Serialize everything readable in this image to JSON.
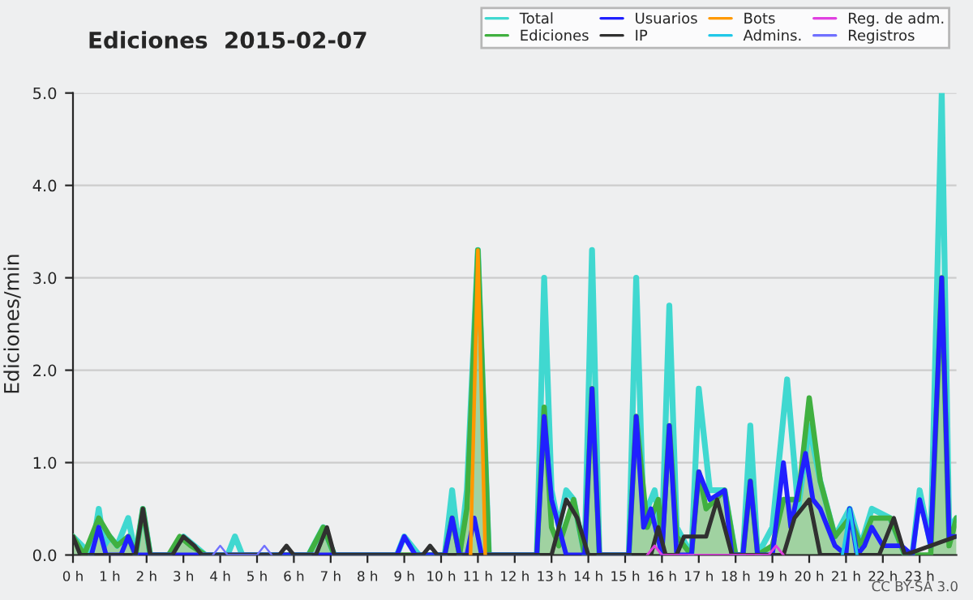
{
  "chart_data": {
    "type": "line",
    "title": "Ediciones  2015-02-07",
    "ylabel": "Ediciones/min",
    "annotations": [
      "CC BY-SA 3.0"
    ],
    "xlim": [
      0,
      24
    ],
    "xticks": [
      {
        "value": 0,
        "label": "0 h"
      },
      {
        "value": 1,
        "label": "1 h"
      },
      {
        "value": 2,
        "label": "2 h"
      },
      {
        "value": 3,
        "label": "3 h"
      },
      {
        "value": 4,
        "label": "4 h"
      },
      {
        "value": 5,
        "label": "5 h"
      },
      {
        "value": 6,
        "label": "6 h"
      },
      {
        "value": 7,
        "label": "7 h"
      },
      {
        "value": 8,
        "label": "8 h"
      },
      {
        "value": 9,
        "label": "9 h"
      },
      {
        "value": 10,
        "label": "10 h"
      },
      {
        "value": 11,
        "label": "11 h"
      },
      {
        "value": 12,
        "label": "12 h"
      },
      {
        "value": 13,
        "label": "13 h"
      },
      {
        "value": 14,
        "label": "14 h"
      },
      {
        "value": 15,
        "label": "15 h"
      },
      {
        "value": 16,
        "label": "16 h"
      },
      {
        "value": 17,
        "label": "17 h"
      },
      {
        "value": 18,
        "label": "18 h"
      },
      {
        "value": 19,
        "label": "19 h"
      },
      {
        "value": 20,
        "label": "20 h"
      },
      {
        "value": 21,
        "label": "21 h"
      },
      {
        "value": 22,
        "label": "22 h"
      },
      {
        "value": 23,
        "label": "23 h"
      }
    ],
    "ylim": [
      0,
      5
    ],
    "yticks": [
      {
        "value": 0,
        "label": "0.0"
      },
      {
        "value": 1,
        "label": "1.0"
      },
      {
        "value": 2,
        "label": "2.0"
      },
      {
        "value": 3,
        "label": "3.0"
      },
      {
        "value": 4,
        "label": "4.0"
      },
      {
        "value": 5,
        "label": "5.0"
      }
    ],
    "grid": "y",
    "legend": "top right",
    "series": [
      {
        "name": "Total",
        "color": "#40d8d0",
        "x": [
          0,
          0.5,
          0.7,
          0.85,
          1.0,
          1.2,
          1.5,
          1.7,
          1.9,
          2.1,
          2.6,
          3.0,
          3.6,
          4.2,
          4.4,
          4.6,
          6.4,
          6.8,
          7.1,
          8.8,
          9.0,
          9.4,
          10.1,
          10.3,
          10.5,
          10.7,
          11.0,
          11.3,
          12.6,
          12.8,
          13.0,
          13.2,
          13.4,
          13.6,
          13.9,
          14.1,
          14.3,
          15.1,
          15.3,
          15.5,
          15.8,
          16.0,
          16.2,
          16.4,
          16.8,
          17.0,
          17.3,
          17.7,
          18.0,
          18.2,
          18.4,
          18.6,
          19.0,
          19.4,
          19.7,
          20.0,
          20.3,
          20.7,
          21.1,
          21.4,
          21.7,
          22.2,
          22.6,
          22.8,
          23.0,
          23.3,
          23.6,
          23.8,
          24
        ],
        "values": [
          0.2,
          0,
          0.5,
          0.1,
          0.2,
          0.1,
          0.4,
          0,
          0.5,
          0,
          0,
          0.2,
          0,
          0,
          0.2,
          0,
          0,
          0.3,
          0,
          0,
          0.2,
          0,
          0,
          0.7,
          0,
          0.7,
          3.3,
          0,
          0,
          3.0,
          0.7,
          0.3,
          0.7,
          0.6,
          0,
          3.3,
          0,
          0,
          3.0,
          0.4,
          0.7,
          0.2,
          2.7,
          0.3,
          0,
          1.8,
          0.7,
          0.7,
          0,
          0,
          1.4,
          0,
          0.3,
          1.9,
          0.5,
          1.4,
          0.8,
          0.2,
          0.5,
          0.1,
          0.5,
          0.4,
          0,
          0,
          0.7,
          0.1,
          5.0,
          0.3,
          0.4
        ]
      },
      {
        "name": "Ediciones",
        "type": "area",
        "color": "#40b040",
        "x": [
          0,
          0.3,
          0.7,
          1.0,
          1.2,
          1.5,
          1.7,
          1.9,
          2.1,
          2.6,
          2.9,
          3.2,
          3.6,
          6.4,
          6.8,
          7.1,
          10.1,
          10.3,
          10.5,
          10.7,
          11.0,
          11.3,
          12.6,
          12.8,
          13.0,
          13.2,
          13.6,
          13.9,
          14.1,
          14.3,
          15.1,
          15.3,
          15.6,
          15.9,
          16.0,
          16.2,
          16.4,
          16.8,
          17.0,
          17.2,
          17.7,
          18.0,
          18.2,
          18.4,
          18.6,
          19.0,
          19.3,
          19.7,
          20.0,
          20.3,
          20.7,
          21.1,
          21.4,
          21.7,
          22.2,
          22.6,
          23.3,
          23.6,
          23.8,
          24
        ],
        "values": [
          0.2,
          0,
          0.4,
          0.2,
          0.1,
          0.2,
          0,
          0.5,
          0,
          0,
          0.2,
          0.1,
          0,
          0,
          0.3,
          0,
          0,
          0.4,
          0,
          0.5,
          3.3,
          0,
          0,
          1.6,
          0.3,
          0.1,
          0.6,
          0,
          1.8,
          0,
          0,
          1.5,
          0.3,
          0.6,
          0.1,
          1.4,
          0.2,
          0,
          0.9,
          0.5,
          0.7,
          0,
          0,
          0.8,
          0,
          0.1,
          0.6,
          0.6,
          1.7,
          0.8,
          0.2,
          0.4,
          0.1,
          0.4,
          0.4,
          0,
          0,
          3.0,
          0.1,
          0.4
        ]
      },
      {
        "name": "Usuarios",
        "color": "#2020ff",
        "x": [
          0.5,
          0.7,
          0.9,
          1.3,
          1.5,
          1.7,
          8.8,
          9.0,
          9.3,
          10.1,
          10.3,
          10.5,
          10.7,
          10.9,
          11.1,
          12.6,
          12.8,
          13.0,
          13.2,
          13.4,
          13.9,
          14.1,
          14.3,
          15.1,
          15.3,
          15.5,
          15.7,
          16.0,
          16.2,
          16.4,
          16.8,
          17.0,
          17.3,
          17.7,
          17.9,
          18.2,
          18.4,
          18.6,
          19.0,
          19.3,
          19.5,
          19.9,
          20.1,
          20.3,
          20.7,
          21.0,
          21.1,
          21.3,
          21.5,
          21.7,
          22.0,
          22.5,
          22.8,
          23.0,
          23.3,
          23.6,
          23.8,
          24
        ],
        "values": [
          0,
          0.3,
          0,
          0,
          0.2,
          0,
          0,
          0.2,
          0,
          0,
          0.4,
          0,
          0,
          0.4,
          0,
          0,
          1.5,
          0.6,
          0.3,
          0,
          0,
          1.8,
          0,
          0,
          1.5,
          0.3,
          0.5,
          0,
          1.4,
          0,
          0,
          0.9,
          0.6,
          0.7,
          0,
          0,
          0.8,
          0,
          0,
          1.0,
          0.3,
          1.1,
          0.6,
          0.5,
          0.1,
          0,
          0.5,
          0,
          0.1,
          0.3,
          0.1,
          0.1,
          0,
          0.6,
          0.1,
          3.0,
          0.2,
          0.2
        ]
      },
      {
        "name": "IP",
        "color": "#303030",
        "x": [
          0,
          0.2,
          1.7,
          1.9,
          2.1,
          2.7,
          3.0,
          3.3,
          3.5,
          5.6,
          5.8,
          6.0,
          6.6,
          6.9,
          7.1,
          9.5,
          9.7,
          9.9,
          13.0,
          13.4,
          13.7,
          14.0,
          15.7,
          15.9,
          16.1,
          16.4,
          16.6,
          17.2,
          17.5,
          17.9,
          19.3,
          19.6,
          20.0,
          20.3,
          21.9,
          22.3,
          22.6,
          24
        ],
        "values": [
          0.2,
          0,
          0,
          0.5,
          0,
          0,
          0.2,
          0.1,
          0,
          0,
          0.1,
          0,
          0,
          0.3,
          0,
          0,
          0.1,
          0,
          0,
          0.6,
          0.4,
          0,
          0,
          0.3,
          0,
          0,
          0.2,
          0.2,
          0.6,
          0,
          0,
          0.4,
          0.6,
          0,
          0,
          0.4,
          0,
          0.2
        ]
      },
      {
        "name": "Bots",
        "color": "#ff9900",
        "x": [
          10.8,
          11.0,
          11.2
        ],
        "values": [
          0,
          3.3,
          0
        ]
      },
      {
        "name": "Admins.",
        "color": "#20c8e8",
        "x": [
          20.9,
          21.1,
          21.3
        ],
        "values": [
          0,
          0.5,
          0
        ]
      },
      {
        "name": "Reg. de adm.",
        "color": "#e040e0",
        "x": [
          15.6,
          15.8,
          16.0,
          18.9,
          19.1,
          19.3
        ],
        "values": [
          0,
          0.1,
          0,
          0,
          0.1,
          0
        ]
      },
      {
        "name": "Registros",
        "color": "#7070ff",
        "x": [
          3.8,
          4.0,
          4.2,
          5.0,
          5.2,
          5.4
        ],
        "values": [
          0,
          0.1,
          0,
          0,
          0.1,
          0
        ]
      }
    ]
  }
}
